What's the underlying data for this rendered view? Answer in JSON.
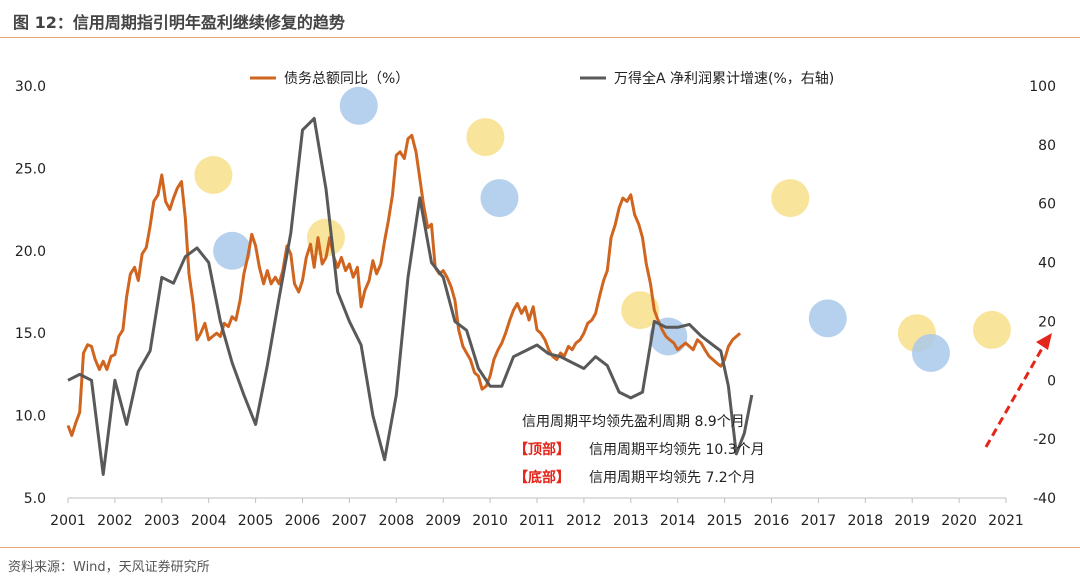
{
  "figure_title": "图 12：信用周期指引明年盈利继续修复的趋势",
  "source": "资料来源：Wind，天风证券研究所",
  "chart_data": {
    "type": "line",
    "x_ticks": [
      "2001",
      "2002",
      "2003",
      "2004",
      "2005",
      "2006",
      "2007",
      "2008",
      "2009",
      "2010",
      "2011",
      "2012",
      "2013",
      "2014",
      "2015",
      "2016",
      "2017",
      "2018",
      "2019",
      "2020",
      "2021"
    ],
    "x_range": [
      2001,
      2021
    ],
    "y_left_range": [
      5,
      30
    ],
    "y_left_ticks": [
      "5.0",
      "10.0",
      "15.0",
      "20.0",
      "25.0",
      "30.0"
    ],
    "y_right_range": [
      -40,
      100
    ],
    "y_right_ticks": [
      "-40",
      "-20",
      "0",
      "20",
      "40",
      "60",
      "80",
      "100"
    ],
    "series": [
      {
        "name": "债务总额同比（%）",
        "axis": "left",
        "color": "#d0651f",
        "points": [
          [
            2001.0,
            9.4
          ],
          [
            2001.08,
            8.8
          ],
          [
            2001.17,
            9.6
          ],
          [
            2001.25,
            10.2
          ],
          [
            2001.33,
            13.8
          ],
          [
            2001.42,
            14.3
          ],
          [
            2001.5,
            14.2
          ],
          [
            2001.58,
            13.4
          ],
          [
            2001.67,
            12.8
          ],
          [
            2001.75,
            13.3
          ],
          [
            2001.83,
            12.8
          ],
          [
            2001.92,
            13.6
          ],
          [
            2002.0,
            13.7
          ],
          [
            2002.08,
            14.8
          ],
          [
            2002.17,
            15.2
          ],
          [
            2002.25,
            17.2
          ],
          [
            2002.33,
            18.6
          ],
          [
            2002.42,
            19.0
          ],
          [
            2002.5,
            18.2
          ],
          [
            2002.58,
            19.8
          ],
          [
            2002.67,
            20.2
          ],
          [
            2002.75,
            21.5
          ],
          [
            2002.83,
            23.0
          ],
          [
            2002.92,
            23.4
          ],
          [
            2003.0,
            24.6
          ],
          [
            2003.08,
            23.0
          ],
          [
            2003.17,
            22.5
          ],
          [
            2003.25,
            23.2
          ],
          [
            2003.33,
            23.8
          ],
          [
            2003.42,
            24.2
          ],
          [
            2003.5,
            22.0
          ],
          [
            2003.58,
            18.6
          ],
          [
            2003.67,
            16.8
          ],
          [
            2003.75,
            14.6
          ],
          [
            2003.83,
            15.0
          ],
          [
            2003.92,
            15.6
          ],
          [
            2004.0,
            14.6
          ],
          [
            2004.08,
            14.8
          ],
          [
            2004.17,
            15.0
          ],
          [
            2004.25,
            14.8
          ],
          [
            2004.33,
            15.6
          ],
          [
            2004.42,
            15.4
          ],
          [
            2004.5,
            16.0
          ],
          [
            2004.58,
            15.8
          ],
          [
            2004.67,
            17.0
          ],
          [
            2004.75,
            18.6
          ],
          [
            2004.83,
            19.6
          ],
          [
            2004.92,
            21.0
          ],
          [
            2005.0,
            20.3
          ],
          [
            2005.08,
            19.0
          ],
          [
            2005.17,
            18.0
          ],
          [
            2005.25,
            18.8
          ],
          [
            2005.33,
            18.0
          ],
          [
            2005.42,
            18.4
          ],
          [
            2005.5,
            18.0
          ],
          [
            2005.58,
            18.8
          ],
          [
            2005.67,
            20.3
          ],
          [
            2005.75,
            19.8
          ],
          [
            2005.83,
            18.0
          ],
          [
            2005.92,
            17.5
          ],
          [
            2006.0,
            18.2
          ],
          [
            2006.08,
            19.6
          ],
          [
            2006.17,
            20.4
          ],
          [
            2006.25,
            19.0
          ],
          [
            2006.33,
            20.8
          ],
          [
            2006.42,
            19.2
          ],
          [
            2006.5,
            19.6
          ],
          [
            2006.58,
            20.8
          ],
          [
            2006.67,
            19.6
          ],
          [
            2006.75,
            19.0
          ],
          [
            2006.83,
            19.6
          ],
          [
            2006.92,
            18.8
          ],
          [
            2007.0,
            19.2
          ],
          [
            2007.08,
            18.4
          ],
          [
            2007.17,
            19.0
          ],
          [
            2007.25,
            16.6
          ],
          [
            2007.33,
            17.6
          ],
          [
            2007.42,
            18.2
          ],
          [
            2007.5,
            19.4
          ],
          [
            2007.58,
            18.6
          ],
          [
            2007.67,
            19.2
          ],
          [
            2007.75,
            20.6
          ],
          [
            2007.83,
            21.8
          ],
          [
            2007.92,
            23.4
          ],
          [
            2008.0,
            25.8
          ],
          [
            2008.08,
            26.0
          ],
          [
            2008.17,
            25.6
          ],
          [
            2008.25,
            26.8
          ],
          [
            2008.33,
            27.0
          ],
          [
            2008.42,
            26.0
          ],
          [
            2008.5,
            24.4
          ],
          [
            2008.58,
            22.8
          ],
          [
            2008.67,
            21.4
          ],
          [
            2008.75,
            21.6
          ],
          [
            2008.83,
            19.0
          ],
          [
            2008.92,
            18.6
          ],
          [
            2009.0,
            18.8
          ],
          [
            2009.08,
            18.4
          ],
          [
            2009.17,
            17.8
          ],
          [
            2009.25,
            17.0
          ],
          [
            2009.33,
            15.2
          ],
          [
            2009.42,
            14.2
          ],
          [
            2009.5,
            13.8
          ],
          [
            2009.58,
            13.4
          ],
          [
            2009.67,
            12.6
          ],
          [
            2009.75,
            12.4
          ],
          [
            2009.83,
            11.6
          ],
          [
            2009.92,
            11.8
          ],
          [
            2010.0,
            12.4
          ],
          [
            2010.08,
            13.4
          ],
          [
            2010.17,
            14.0
          ],
          [
            2010.25,
            14.4
          ],
          [
            2010.33,
            15.0
          ],
          [
            2010.42,
            15.8
          ],
          [
            2010.5,
            16.4
          ],
          [
            2010.58,
            16.8
          ],
          [
            2010.67,
            16.2
          ],
          [
            2010.75,
            16.6
          ],
          [
            2010.83,
            15.8
          ],
          [
            2010.92,
            16.6
          ],
          [
            2011.0,
            15.2
          ],
          [
            2011.08,
            15.0
          ],
          [
            2011.17,
            14.6
          ],
          [
            2011.25,
            14.0
          ],
          [
            2011.33,
            13.6
          ],
          [
            2011.42,
            13.4
          ],
          [
            2011.5,
            13.8
          ],
          [
            2011.58,
            13.6
          ],
          [
            2011.67,
            14.2
          ],
          [
            2011.75,
            14.0
          ],
          [
            2011.83,
            14.4
          ],
          [
            2011.92,
            14.6
          ],
          [
            2012.0,
            15.0
          ],
          [
            2012.08,
            15.6
          ],
          [
            2012.17,
            15.8
          ],
          [
            2012.25,
            16.2
          ],
          [
            2012.33,
            17.2
          ],
          [
            2012.42,
            18.2
          ],
          [
            2012.5,
            18.8
          ],
          [
            2012.58,
            20.8
          ],
          [
            2012.67,
            21.6
          ],
          [
            2012.75,
            22.6
          ],
          [
            2012.83,
            23.2
          ],
          [
            2012.92,
            23.0
          ],
          [
            2013.0,
            23.4
          ],
          [
            2013.08,
            22.2
          ],
          [
            2013.17,
            21.6
          ],
          [
            2013.25,
            20.8
          ],
          [
            2013.33,
            19.2
          ],
          [
            2013.42,
            18.0
          ],
          [
            2013.5,
            16.4
          ],
          [
            2013.58,
            15.8
          ],
          [
            2013.67,
            15.2
          ],
          [
            2013.75,
            14.8
          ],
          [
            2013.83,
            14.6
          ],
          [
            2013.92,
            14.4
          ],
          [
            2014.0,
            14.0
          ],
          [
            2014.08,
            14.2
          ],
          [
            2014.17,
            14.4
          ],
          [
            2014.25,
            14.2
          ],
          [
            2014.33,
            14.0
          ],
          [
            2014.42,
            14.6
          ],
          [
            2014.5,
            14.4
          ],
          [
            2014.58,
            14.0
          ],
          [
            2014.67,
            13.6
          ],
          [
            2014.75,
            13.4
          ],
          [
            2014.83,
            13.2
          ],
          [
            2014.92,
            13.0
          ],
          [
            2015.0,
            13.4
          ],
          [
            2015.08,
            14.2
          ],
          [
            2015.17,
            14.6
          ],
          [
            2015.25,
            14.8
          ],
          [
            2015.33,
            15.0
          ]
        ]
      },
      {
        "name": "万得全A 净利润累计增速(%，右轴)",
        "axis": "right",
        "color": "#595959",
        "points": [
          [
            2001.0,
            0
          ],
          [
            2001.25,
            2
          ],
          [
            2001.5,
            0
          ],
          [
            2001.75,
            -32
          ],
          [
            2002.0,
            0
          ],
          [
            2002.25,
            -15
          ],
          [
            2002.5,
            3
          ],
          [
            2002.75,
            10
          ],
          [
            2003.0,
            35
          ],
          [
            2003.25,
            33
          ],
          [
            2003.5,
            42
          ],
          [
            2003.75,
            45
          ],
          [
            2004.0,
            40
          ],
          [
            2004.25,
            20
          ],
          [
            2004.5,
            6
          ],
          [
            2004.75,
            -5
          ],
          [
            2005.0,
            -15
          ],
          [
            2005.25,
            5
          ],
          [
            2005.5,
            28
          ],
          [
            2005.75,
            50
          ],
          [
            2006.0,
            85
          ],
          [
            2006.25,
            89
          ],
          [
            2006.5,
            65
          ],
          [
            2006.75,
            30
          ],
          [
            2007.0,
            20
          ],
          [
            2007.25,
            12
          ],
          [
            2007.5,
            -12
          ],
          [
            2007.75,
            -27
          ],
          [
            2008.0,
            -5
          ],
          [
            2008.25,
            35
          ],
          [
            2008.5,
            62
          ],
          [
            2008.75,
            40
          ],
          [
            2009.0,
            35
          ],
          [
            2009.25,
            20
          ],
          [
            2009.5,
            17
          ],
          [
            2009.75,
            4
          ],
          [
            2010.0,
            -2
          ],
          [
            2010.25,
            -2
          ],
          [
            2010.5,
            8
          ],
          [
            2010.75,
            10
          ],
          [
            2011.0,
            12
          ],
          [
            2011.25,
            9
          ],
          [
            2011.5,
            8
          ],
          [
            2011.75,
            6
          ],
          [
            2012.0,
            4
          ],
          [
            2012.25,
            8
          ],
          [
            2012.5,
            5
          ],
          [
            2012.75,
            -4
          ],
          [
            2013.0,
            -6
          ],
          [
            2013.25,
            -4
          ],
          [
            2013.5,
            20
          ],
          [
            2013.75,
            18
          ],
          [
            2014.0,
            18
          ],
          [
            2014.25,
            19
          ],
          [
            2014.5,
            15
          ],
          [
            2014.75,
            12
          ],
          [
            2014.92,
            10
          ],
          [
            2015.08,
            -2
          ],
          [
            2015.25,
            -25
          ],
          [
            2015.42,
            -18
          ],
          [
            2015.58,
            -5
          ]
        ]
      }
    ],
    "annotations": [
      {
        "text": "信用周期平均领先盈利周期  8.9个月"
      },
      {
        "tag": "【顶部】",
        "text": "信用周期平均领先 10.3个月"
      },
      {
        "tag": "【底部】",
        "text": "信用周期平均领先  7.2个月"
      }
    ],
    "highlights": [
      {
        "kind": "peak",
        "x": 2004.1,
        "y": 24.6
      },
      {
        "kind": "trough",
        "x": 2004.5,
        "y": 20.0
      },
      {
        "kind": "peak",
        "x": 2006.5,
        "y": 20.8
      },
      {
        "kind": "trough",
        "x": 2007.2,
        "y": 28.8
      },
      {
        "kind": "peak",
        "x": 2009.9,
        "y": 26.9
      },
      {
        "kind": "trough",
        "x": 2010.2,
        "y": 23.2
      },
      {
        "kind": "peak",
        "x": 2013.2,
        "y": 16.4
      },
      {
        "kind": "trough",
        "x": 2013.8,
        "y": 14.8
      },
      {
        "kind": "peak",
        "x": 2016.4,
        "y": 23.2
      },
      {
        "kind": "trough",
        "x": 2017.2,
        "y": 15.9
      },
      {
        "kind": "peak",
        "x": 2019.1,
        "y": 15.0
      },
      {
        "kind": "trough",
        "x": 2019.4,
        "y": 13.8
      },
      {
        "kind": "peak",
        "x": 2020.7,
        "y": 15.2
      }
    ],
    "highlight_colors": {
      "peak": "#f7e08a",
      "trough": "#a9c9ea"
    },
    "trend_arrow_color": "#e3251a",
    "legend_placement": "top",
    "grid": false
  }
}
